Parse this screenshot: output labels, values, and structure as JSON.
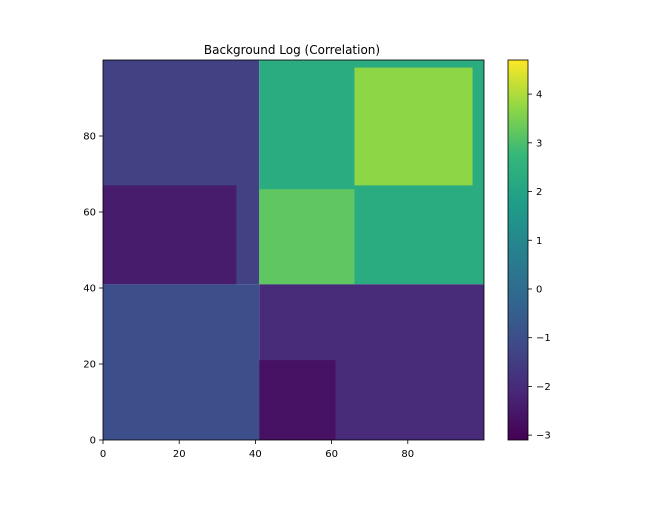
{
  "chart_data": {
    "type": "heatmap",
    "title": "Background Log (Correlation)",
    "xlabel": "",
    "ylabel": "",
    "xlim": [
      0,
      100
    ],
    "ylim": [
      0,
      100
    ],
    "x_ticks": [
      0,
      20,
      40,
      60,
      80
    ],
    "y_ticks": [
      0,
      20,
      40,
      60,
      80
    ],
    "colorbar": {
      "colormap": "viridis",
      "range": [
        -3.1,
        4.7
      ],
      "ticks": [
        -3,
        -2,
        -1,
        0,
        1,
        2,
        3,
        4
      ],
      "tick_labels": [
        "−3",
        "−2",
        "−1",
        "0",
        "1",
        "2",
        "3",
        "4"
      ]
    },
    "regions": [
      {
        "x": [
          0,
          41
        ],
        "y": [
          0,
          41
        ],
        "value": -1.0,
        "note": "lower-left block"
      },
      {
        "x": [
          41,
          100
        ],
        "y": [
          0,
          41
        ],
        "value": -2.0,
        "note": "lower-right block"
      },
      {
        "x": [
          41,
          61
        ],
        "y": [
          0,
          21
        ],
        "value": -2.7,
        "note": "darkest sub-block"
      },
      {
        "x": [
          0,
          41
        ],
        "y": [
          41,
          100
        ],
        "value": -1.4,
        "note": "upper-left block"
      },
      {
        "x": [
          0,
          35
        ],
        "y": [
          41,
          67
        ],
        "value": -2.4,
        "note": "dark sub-block"
      },
      {
        "x": [
          41,
          100
        ],
        "y": [
          41,
          100
        ],
        "value": 2.3,
        "note": "upper-right block"
      },
      {
        "x": [
          41,
          66
        ],
        "y": [
          41,
          66
        ],
        "value": 3.2,
        "note": "bright sub-block"
      },
      {
        "x": [
          66,
          97
        ],
        "y": [
          67,
          98
        ],
        "value": 3.7,
        "note": "brightest sub-block"
      }
    ],
    "grid": false
  }
}
